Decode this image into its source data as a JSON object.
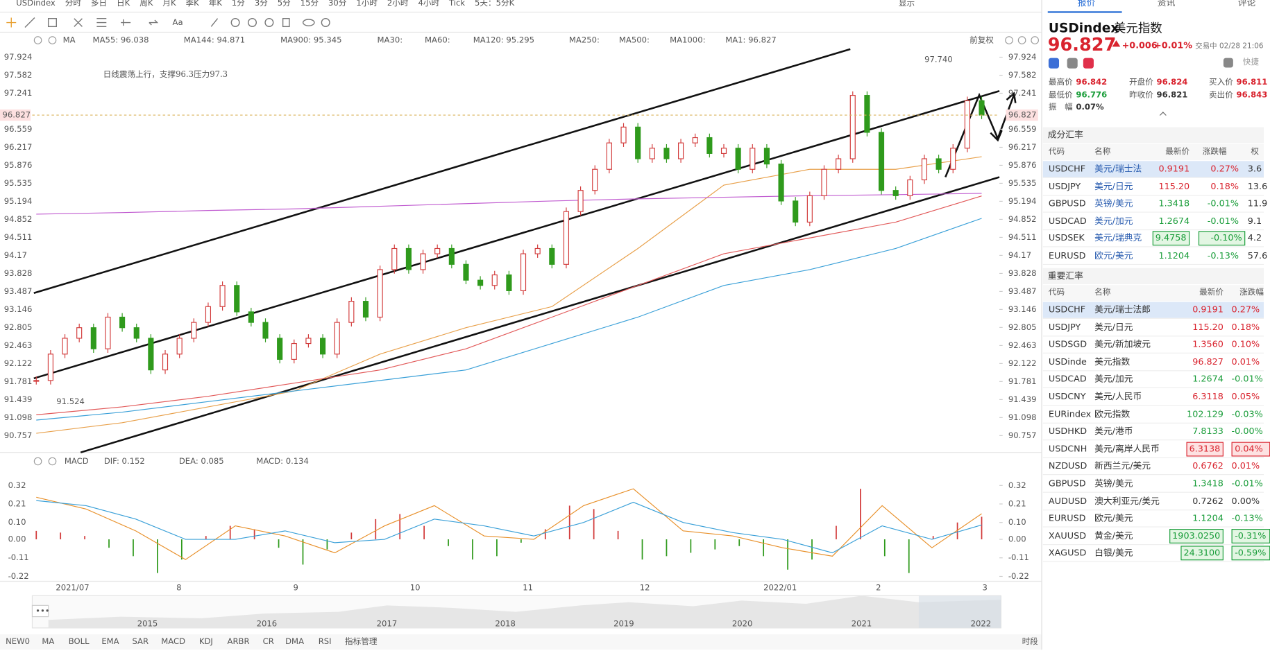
{
  "toolbar": {
    "symbol": "USDindex",
    "periods": [
      "分时",
      "多日",
      "日K",
      "周K",
      "月K",
      "季K",
      "年K",
      "1分",
      "3分",
      "5分",
      "15分",
      "30分",
      "1小时",
      "2小时",
      "4小时",
      "Tick",
      "5天：5分K"
    ],
    "active": 2,
    "display": "显示"
  },
  "chart": {
    "ma_name": "MA",
    "adjust": "前复权",
    "ma_legend": [
      {
        "label": "MA55: 96.038",
        "color": "#e8a04a"
      },
      {
        "label": "MA144: 94.871",
        "color": "#3aa0d8"
      },
      {
        "label": "MA900: 95.345",
        "color": "#c05bd0"
      },
      {
        "label": "MA30:",
        "color": "#b9d6ee"
      },
      {
        "label": "MA60:",
        "color": "#bfe3c3"
      },
      {
        "label": "MA120: 95.295",
        "color": "#e25a5a"
      },
      {
        "label": "MA250:",
        "color": "#a9def5"
      },
      {
        "label": "MA500:",
        "color": "#f5d3a0"
      },
      {
        "label": "MA1000:",
        "color": "#c5b8e0"
      },
      {
        "label": "MA1: 96.827",
        "color": "#444444"
      }
    ],
    "annotation": "日线震荡上行，支撑96.3压力97.3",
    "high_label": "97.740",
    "low_label": "91.524",
    "last_price": 96.827,
    "ylim": [
      90.437,
      98.397
    ],
    "yticks": [
      97.924,
      97.582,
      97.241,
      96.559,
      96.217,
      95.876,
      95.535,
      95.194,
      94.852,
      94.511,
      94.17,
      93.828,
      93.487,
      93.146,
      92.805,
      92.463,
      92.122,
      91.781,
      91.439,
      91.098,
      90.757
    ],
    "up_color": "#d23a3a",
    "down_color": "#2f9a1c",
    "close": [
      91.8,
      92.3,
      92.6,
      92.8,
      92.4,
      93.0,
      92.8,
      92.6,
      92.0,
      92.3,
      92.6,
      92.9,
      93.2,
      93.6,
      93.1,
      92.9,
      92.6,
      92.2,
      92.5,
      92.6,
      92.3,
      92.9,
      93.3,
      93.0,
      93.9,
      94.3,
      93.9,
      94.2,
      94.3,
      94.0,
      93.7,
      93.6,
      93.8,
      93.5,
      94.2,
      94.3,
      94.0,
      95.0,
      95.4,
      95.8,
      96.3,
      96.6,
      96.0,
      96.2,
      96.0,
      96.3,
      96.4,
      96.1,
      96.2,
      95.8,
      96.2,
      95.9,
      95.2,
      94.8,
      95.3,
      95.8,
      96.0,
      97.2,
      96.5,
      95.4,
      95.3,
      95.6,
      96.0,
      95.8,
      96.2,
      97.1,
      96.827
    ],
    "ma": [
      {
        "color": "#e8a04a",
        "values": [
          90.8,
          91.0,
          91.3,
          91.6,
          92.3,
          92.8,
          93.2,
          94.3,
          95.5,
          95.8,
          95.8,
          96.038
        ]
      },
      {
        "color": "#3aa0d8",
        "values": [
          91.05,
          91.2,
          91.4,
          91.6,
          91.8,
          92.0,
          92.5,
          93.0,
          93.6,
          93.9,
          94.3,
          94.871
        ]
      },
      {
        "color": "#e25a5a",
        "values": [
          91.15,
          91.3,
          91.5,
          91.75,
          92.0,
          92.4,
          93.0,
          93.6,
          94.2,
          94.5,
          94.8,
          95.295
        ]
      },
      {
        "color": "#c05bd0",
        "values": [
          94.95,
          94.98,
          95.02,
          95.05,
          95.1,
          95.15,
          95.2,
          95.24,
          95.27,
          95.3,
          95.32,
          95.345
        ]
      }
    ],
    "x_labels": [
      "2021/07",
      "8",
      "9",
      "10",
      "11",
      "12",
      "2022/01",
      "2",
      "3"
    ],
    "navigator_years": [
      "2015",
      "2016",
      "2017",
      "2018",
      "2019",
      "2020",
      "2021",
      "2022"
    ],
    "macd": {
      "label": "MACD",
      "dif_label": "DIF: 0.152",
      "dea_label": "DEA: 0.085",
      "macd_label": "MACD: 0.134",
      "dif_color": "#e8902a",
      "dea_color": "#3aa0d8",
      "macd_color": "#c05bd0",
      "ylim": [
        -0.268,
        0.382
      ],
      "yticks": [
        0.32,
        0.21,
        {
          "value": 0.1,
          "label": "0.10"
        },
        {
          "value": 0,
          "label": "0.00"
        },
        -0.11,
        -0.22
      ],
      "hist": [
        0.05,
        0.04,
        0.02,
        -0.05,
        -0.1,
        -0.2,
        -0.12,
        0.02,
        0.08,
        0.06,
        -0.05,
        -0.15,
        -0.06,
        0.04,
        0.12,
        0.15,
        0.08,
        -0.04,
        -0.12,
        -0.1,
        -0.02,
        0.06,
        0.2,
        0.18,
        0.05,
        -0.12,
        -0.1,
        -0.08,
        -0.06,
        -0.04,
        -0.1,
        -0.18,
        -0.12,
        0.08,
        0.3,
        -0.1,
        -0.2,
        0.02,
        0.1,
        0.134
      ],
      "dif": [
        0.25,
        0.18,
        0.05,
        -0.12,
        0.08,
        0.02,
        -0.08,
        0.08,
        0.2,
        0.02,
        0.0,
        0.2,
        0.3,
        0.05,
        0.02,
        -0.05,
        -0.1,
        0.2,
        -0.05,
        0.152
      ],
      "dea": [
        0.23,
        0.2,
        0.12,
        0.0,
        0.0,
        0.05,
        -0.02,
        0.0,
        0.12,
        0.08,
        0.02,
        0.1,
        0.22,
        0.1,
        0.04,
        0.0,
        -0.08,
        0.08,
        0.0,
        0.085
      ]
    }
  },
  "indicator_tabs": {
    "items": [
      "NEW0",
      "MA",
      "BOLL",
      "EMA",
      "SAR",
      "MACD",
      "KDJ",
      "ARBR",
      "CR",
      "DMA",
      "RSI",
      "指标管理"
    ],
    "active": [
      1,
      5,
      11
    ],
    "session": "时段"
  },
  "quote": {
    "tabs": [
      "报价",
      "资讯",
      "评论"
    ],
    "symbol": "USDindex",
    "name": "美元指数",
    "price": "96.827",
    "change": "+0.006",
    "change_pct": "+0.01%",
    "status": "交易中 02/28 21:06",
    "quick": "快捷",
    "stats": [
      {
        "label": "最高价",
        "value": "96.842",
        "color": "#d9232e"
      },
      {
        "label": "开盘价",
        "value": "96.824",
        "color": "#d9232e"
      },
      {
        "label": "买入价",
        "value": "96.811",
        "color": "#d9232e"
      },
      {
        "label": "最低价",
        "value": "96.776",
        "color": "#1a9d3a"
      },
      {
        "label": "昨收价",
        "value": "96.821",
        "color": "#333333"
      },
      {
        "label": "卖出价",
        "value": "96.843",
        "color": "#d9232e"
      },
      {
        "label": "振　幅",
        "value": "0.07%",
        "color": "#333333"
      }
    ]
  },
  "components": {
    "title": "成分汇率",
    "headers": [
      "代码",
      "名称",
      "最新价",
      "涨跌幅",
      "权"
    ],
    "boxed": [
      4
    ],
    "rows": [
      [
        "USDCHF",
        "美元/瑞士法",
        "0.9191",
        "0.27%",
        "3.6"
      ],
      [
        "USDJPY",
        "美元/日元",
        "115.20",
        "0.18%",
        "13.6"
      ],
      [
        "GBPUSD",
        "英镑/美元",
        "1.3418",
        "-0.01%",
        "11.9"
      ],
      [
        "USDCAD",
        "美元/加元",
        "1.2674",
        "-0.01%",
        "9.1"
      ],
      [
        "USDSEK",
        "美元/瑞典克",
        "9.4758",
        "-0.10%",
        "4.2"
      ],
      [
        "EURUSD",
        "欧元/美元",
        "1.1204",
        "-0.13%",
        "57.6"
      ]
    ]
  },
  "major": {
    "title": "重要汇率",
    "headers": [
      "代码",
      "名称",
      "最新价",
      "涨跌幅"
    ],
    "boxed": [
      8,
      13,
      14
    ],
    "rows": [
      [
        "USDCHF",
        "美元/瑞士法郎",
        "0.9191",
        "0.27%"
      ],
      [
        "USDJPY",
        "美元/日元",
        "115.20",
        "0.18%"
      ],
      [
        "USDSGD",
        "美元/新加坡元",
        "1.3560",
        "0.10%"
      ],
      [
        "USDinde",
        "美元指数",
        "96.827",
        "0.01%"
      ],
      [
        "USDCAD",
        "美元/加元",
        "1.2674",
        "-0.01%"
      ],
      [
        "USDCNY",
        "美元/人民币",
        "6.3118",
        "0.05%"
      ],
      [
        "EURindex",
        "欧元指数",
        "102.129",
        "-0.03%"
      ],
      [
        "USDHKD",
        "美元/港币",
        "7.8133",
        "-0.00%"
      ],
      [
        "USDCNH",
        "美元/离岸人民币",
        "6.3138",
        "0.04%"
      ],
      [
        "NZDUSD",
        "新西兰元/美元",
        "0.6762",
        "0.01%"
      ],
      [
        "GBPUSD",
        "英镑/美元",
        "1.3418",
        "-0.01%"
      ],
      [
        "AUDUSD",
        "澳大利亚元/美元",
        "0.7262",
        "0.00%"
      ],
      [
        "EURUSD",
        "欧元/美元",
        "1.1204",
        "-0.13%"
      ],
      [
        "XAUUSD",
        "黄金/美元",
        "1903.0250",
        "-0.31%"
      ],
      [
        "XAGUSD",
        "白银/美元",
        "24.3100",
        "-0.59%"
      ]
    ]
  }
}
